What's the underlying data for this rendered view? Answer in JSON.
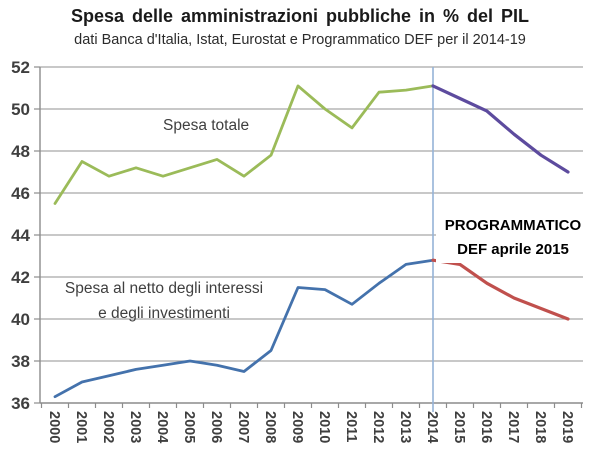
{
  "header": {
    "title": "Spesa delle amministrazioni pubbliche in % del PIL",
    "subtitle": "dati Banca d'Italia, Istat, Eurostat e Programmatico DEF per il 2014-19"
  },
  "chart_data": {
    "type": "line",
    "x": [
      2000,
      2001,
      2002,
      2003,
      2004,
      2005,
      2006,
      2007,
      2008,
      2009,
      2010,
      2011,
      2012,
      2013,
      2014,
      2015,
      2016,
      2017,
      2018,
      2019
    ],
    "xtick_labels": [
      "2000",
      "2001",
      "2002",
      "2003",
      "2004",
      "2005",
      "2006",
      "2007",
      "2008",
      "2009",
      "2010",
      "2011",
      "2012",
      "2013",
      "2014",
      "2015",
      "2016",
      "2017",
      "2018",
      "2019"
    ],
    "ylim": [
      36,
      52
    ],
    "yticks": [
      36,
      38,
      40,
      42,
      44,
      46,
      48,
      50,
      52
    ],
    "grid": true,
    "legend": "none",
    "series": [
      {
        "id": "spesa-totale-storico",
        "name": "Spesa totale (dati storici)",
        "color": "#9bbb59",
        "x_start": 2000,
        "values": [
          45.5,
          47.5,
          46.8,
          47.2,
          46.8,
          47.2,
          47.6,
          46.8,
          47.8,
          51.1,
          50.0,
          49.1,
          50.8,
          50.9,
          51.1
        ]
      },
      {
        "id": "spesa-totale-programmatico",
        "name": "Spesa totale (programmatico DEF aprile 2015)",
        "color": "#5d4b9e",
        "x_start": 2014,
        "values": [
          51.1,
          50.5,
          49.9,
          48.8,
          47.8,
          47.0
        ]
      },
      {
        "id": "spesa-netto-storico",
        "name": "Spesa al netto degli interessi e degli investimenti (dati storici)",
        "color": "#4472ac",
        "x_start": 2000,
        "values": [
          36.3,
          37.0,
          37.3,
          37.6,
          37.8,
          38.0,
          37.8,
          37.5,
          38.5,
          41.5,
          41.4,
          40.7,
          41.7,
          42.6,
          42.8
        ]
      },
      {
        "id": "spesa-netto-programmatico",
        "name": "Spesa al netto degli interessi e degli investimenti (programmatico DEF aprile 2015)",
        "color": "#c0504d",
        "x_start": 2014,
        "values": [
          42.8,
          42.6,
          41.7,
          41.0,
          40.5,
          40.0
        ]
      }
    ],
    "vline": {
      "x": 2014,
      "color": "#95b3d7"
    },
    "colors": {
      "grid": "#a6a6a6",
      "axis": "#8c8c8c"
    },
    "annotations": {
      "series1_label": "Spesa totale",
      "series2_label_line1": "Spesa al netto degli interessi",
      "series2_label_line2": "e degli investimenti",
      "program_label_line1": "PROGRAMMATICO",
      "program_label_line2": "DEF aprile 2015"
    }
  }
}
